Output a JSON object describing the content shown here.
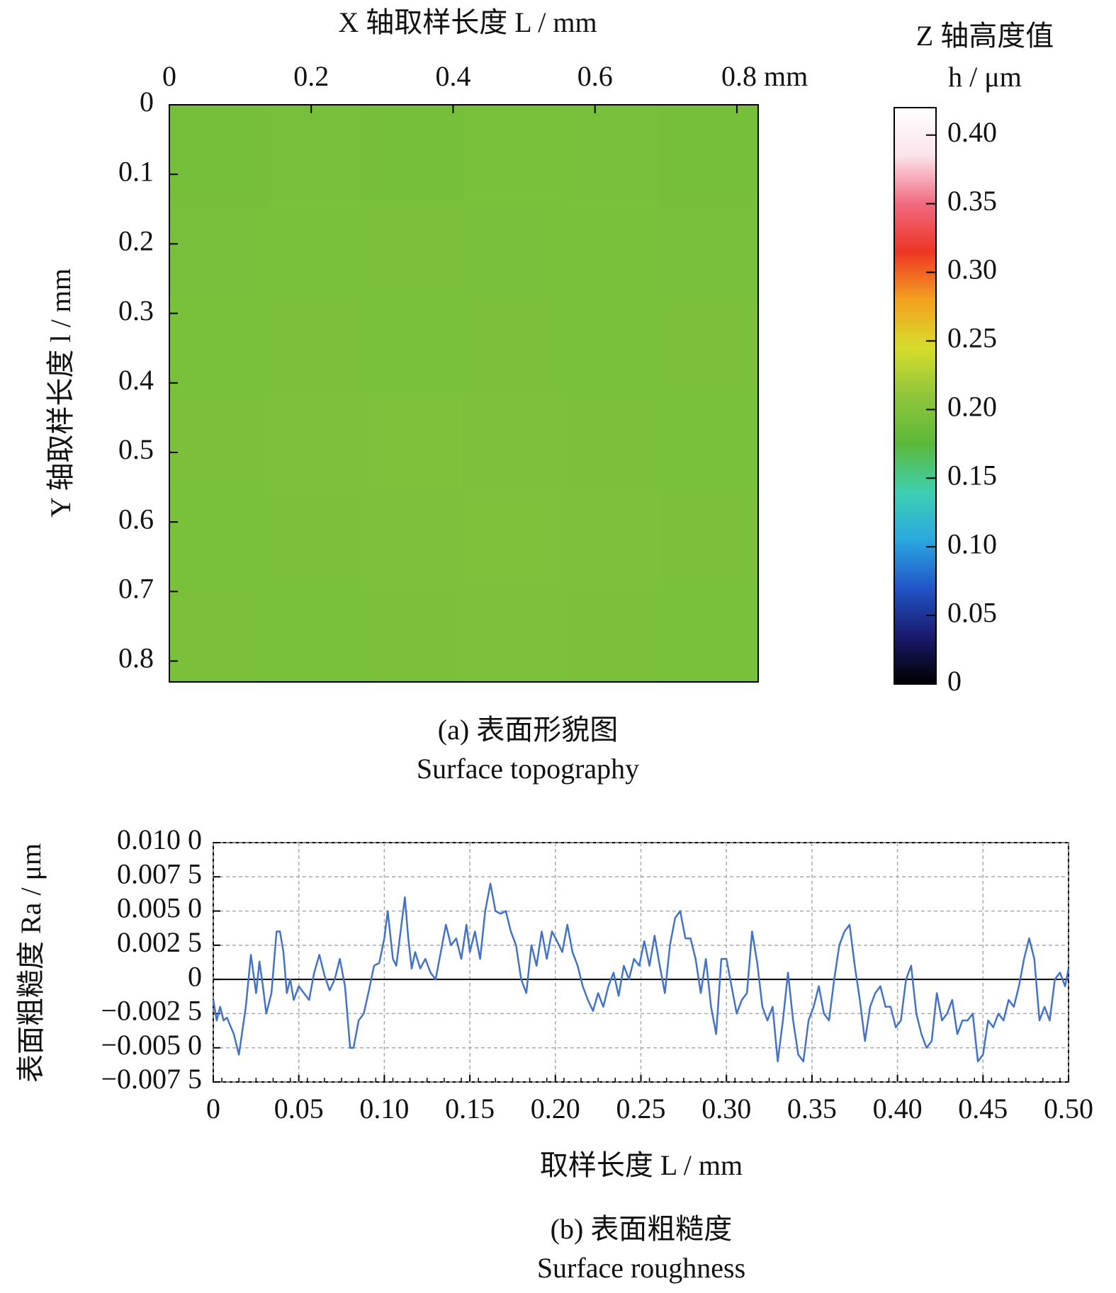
{
  "chart_data": [
    {
      "type": "heatmap",
      "title": "X 轴取样长度 L / mm",
      "y_label": "Y 轴取样长度 l / mm",
      "caption": "(a) 表面形貌图",
      "caption_en": "Surface topography",
      "colorbar_title": [
        "Z 轴高度值",
        "h / μm"
      ],
      "xlim": [
        0,
        0.83
      ],
      "ylim": [
        0,
        0.83
      ],
      "xticks": [
        0,
        0.2,
        0.4,
        0.6,
        {
          "value": 0.8,
          "label": "0.8 mm"
        }
      ],
      "yticks": [
        0,
        0.1,
        0.2,
        0.3,
        0.4,
        0.5,
        0.6,
        0.7,
        0.8
      ],
      "zlim": [
        0,
        0.42
      ],
      "zticks": [
        0,
        0.05,
        {
          "value": 0.1,
          "label": "0.10"
        },
        0.15,
        {
          "value": 0.2,
          "label": "0.20"
        },
        0.25,
        {
          "value": 0.3,
          "label": "0.30"
        },
        0.35,
        {
          "value": 0.4,
          "label": "0.40"
        }
      ],
      "colormap": [
        "#000000",
        "#1a1a6e",
        "#2255c8",
        "#2aa8e0",
        "#3ecfb0",
        "#5cb83a",
        "#8fc63c",
        "#d6dc2c",
        "#f4a020",
        "#ee3524",
        "#f06a80",
        "#fbe3ea",
        "#ffffff"
      ],
      "values": [
        [
          0.192,
          0.194,
          0.193,
          0.195,
          0.194,
          0.193
        ],
        [
          0.194,
          0.195,
          0.196,
          0.194,
          0.195,
          0.194
        ],
        [
          0.195,
          0.196,
          0.195,
          0.196,
          0.195,
          0.196
        ],
        [
          0.196,
          0.197,
          0.198,
          0.197,
          0.196,
          0.195
        ],
        [
          0.195,
          0.196,
          0.197,
          0.198,
          0.197,
          0.196
        ],
        [
          0.196,
          0.195,
          0.196,
          0.197,
          0.196,
          0.195
        ]
      ]
    },
    {
      "type": "line",
      "x_label": "取样长度 L / mm",
      "y_label": "表面粗糙度 Ra / μm",
      "caption": "(b) 表面粗糙度",
      "caption_en": "Surface roughness",
      "xlim": [
        0,
        0.5
      ],
      "ylim": [
        -0.0075,
        0.01
      ],
      "xticks": [
        0,
        0.05,
        {
          "value": 0.1,
          "label": "0.10"
        },
        0.15,
        {
          "value": 0.2,
          "label": "0.20"
        },
        0.25,
        {
          "value": 0.3,
          "label": "0.30"
        },
        0.35,
        {
          "value": 0.4,
          "label": "0.40"
        },
        0.45,
        {
          "value": 0.5,
          "label": "0.50"
        }
      ],
      "yticks": [
        {
          "value": -0.0075,
          "label": "−0.007 5"
        },
        {
          "value": -0.005,
          "label": "−0.005 0"
        },
        {
          "value": -0.0025,
          "label": "−0.002 5"
        },
        0,
        {
          "value": 0.0025,
          "label": "0.002 5"
        },
        {
          "value": 0.005,
          "label": "0.005 0"
        },
        {
          "value": 0.0075,
          "label": "0.007 5"
        },
        {
          "value": 0.01,
          "label": "0.010 0"
        }
      ],
      "grid": true,
      "series": [
        {
          "color": "#4472c4",
          "x": [
            0,
            0.002,
            0.004,
            0.006,
            0.008,
            0.012,
            0.015,
            0.019,
            0.022,
            0.025,
            0.027,
            0.029,
            0.031,
            0.034,
            0.037,
            0.039,
            0.041,
            0.043,
            0.045,
            0.047,
            0.05,
            0.053,
            0.056,
            0.059,
            0.062,
            0.065,
            0.068,
            0.071,
            0.074,
            0.077,
            0.08,
            0.082,
            0.085,
            0.088,
            0.091,
            0.094,
            0.097,
            0.1,
            0.102,
            0.105,
            0.107,
            0.109,
            0.112,
            0.114,
            0.116,
            0.118,
            0.121,
            0.124,
            0.127,
            0.13,
            0.133,
            0.136,
            0.139,
            0.142,
            0.145,
            0.148,
            0.15,
            0.153,
            0.156,
            0.159,
            0.162,
            0.165,
            0.168,
            0.171,
            0.174,
            0.177,
            0.18,
            0.183,
            0.186,
            0.189,
            0.192,
            0.195,
            0.198,
            0.201,
            0.204,
            0.207,
            0.21,
            0.213,
            0.216,
            0.219,
            0.222,
            0.225,
            0.228,
            0.231,
            0.234,
            0.237,
            0.24,
            0.243,
            0.246,
            0.249,
            0.252,
            0.255,
            0.258,
            0.261,
            0.264,
            0.267,
            0.27,
            0.273,
            0.276,
            0.279,
            0.282,
            0.285,
            0.288,
            0.291,
            0.294,
            0.297,
            0.3,
            0.303,
            0.306,
            0.309,
            0.312,
            0.315,
            0.318,
            0.321,
            0.324,
            0.327,
            0.33,
            0.333,
            0.336,
            0.339,
            0.342,
            0.345,
            0.348,
            0.351,
            0.354,
            0.357,
            0.36,
            0.363,
            0.366,
            0.369,
            0.372,
            0.375,
            0.378,
            0.381,
            0.384,
            0.387,
            0.39,
            0.393,
            0.396,
            0.399,
            0.402,
            0.405,
            0.408,
            0.411,
            0.414,
            0.417,
            0.42,
            0.423,
            0.426,
            0.429,
            0.432,
            0.435,
            0.438,
            0.441,
            0.444,
            0.447,
            0.45,
            0.453,
            0.456,
            0.459,
            0.462,
            0.465,
            0.468,
            0.471,
            0.474,
            0.477,
            0.48,
            0.483,
            0.486,
            0.489,
            0.492,
            0.495,
            0.498,
            0.5
          ],
          "values": [
            -0.0015,
            -0.003,
            -0.002,
            -0.003,
            -0.0028,
            -0.004,
            -0.0055,
            -0.002,
            0.0018,
            -0.001,
            0.0013,
            -0.0005,
            -0.0025,
            -0.001,
            0.0035,
            0.0035,
            0.002,
            -0.001,
            0.0,
            -0.0015,
            -0.0005,
            -0.001,
            -0.0015,
            0.0005,
            0.0018,
            0.0003,
            -0.0008,
            0.0,
            0.0015,
            -0.0005,
            -0.005,
            -0.005,
            -0.003,
            -0.0025,
            -0.0008,
            0.001,
            0.0012,
            0.003,
            0.005,
            0.0015,
            0.001,
            0.003,
            0.006,
            0.003,
            0.0008,
            0.002,
            0.0008,
            0.0015,
            0.0005,
            0.0,
            0.002,
            0.004,
            0.0025,
            0.003,
            0.0015,
            0.004,
            0.002,
            0.0035,
            0.0015,
            0.005,
            0.007,
            0.005,
            0.0048,
            0.005,
            0.0035,
            0.0025,
            0.0,
            -0.001,
            0.0025,
            0.001,
            0.0035,
            0.0015,
            0.0035,
            0.0028,
            0.002,
            0.004,
            0.002,
            0.001,
            -0.0005,
            -0.0015,
            -0.0023,
            -0.001,
            -0.002,
            -0.0005,
            0.0005,
            -0.0012,
            0.001,
            0.0,
            0.0015,
            0.001,
            0.0028,
            0.001,
            0.0032,
            0.001,
            -0.001,
            0.0025,
            0.0045,
            0.005,
            0.003,
            0.003,
            0.0015,
            -0.001,
            0.0015,
            -0.002,
            -0.004,
            0.0015,
            0.0015,
            -0.0005,
            -0.0025,
            -0.0015,
            -0.001,
            0.0035,
            0.0012,
            -0.002,
            -0.003,
            -0.002,
            -0.006,
            -0.003,
            0.0005,
            -0.003,
            -0.0055,
            -0.006,
            -0.003,
            -0.002,
            -0.0005,
            -0.0025,
            -0.003,
            0.0,
            0.0025,
            0.0035,
            0.004,
            0.001,
            -0.0015,
            -0.0045,
            -0.002,
            -0.001,
            -0.0005,
            -0.002,
            -0.002,
            -0.0035,
            -0.003,
            0.0,
            0.001,
            -0.0025,
            -0.004,
            -0.005,
            -0.0045,
            -0.001,
            -0.003,
            -0.0025,
            -0.0015,
            -0.004,
            -0.003,
            -0.003,
            -0.0025,
            -0.006,
            -0.0055,
            -0.003,
            -0.0035,
            -0.0025,
            -0.003,
            -0.0015,
            -0.002,
            -0.0005,
            0.0015,
            0.003,
            0.0015,
            -0.003,
            -0.002,
            -0.003,
            0.0,
            0.0005,
            -0.0005,
            0.0008
          ]
        }
      ]
    }
  ]
}
